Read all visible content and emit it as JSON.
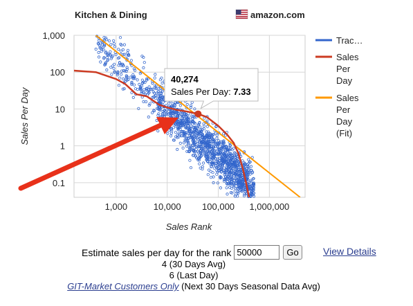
{
  "header": {
    "category": "Kitchen & Dining",
    "marketplace": "amazon.com",
    "flag_icon": "us-flag-icon"
  },
  "chart_data": {
    "type": "scatter",
    "xlabel": "Sales Rank",
    "ylabel": "Sales Per Day",
    "x_scale": "log",
    "y_scale": "log",
    "xlim": [
      150,
      5000000
    ],
    "ylim": [
      0.04,
      1000
    ],
    "x_ticks": [
      "1,000",
      "10,000",
      "100,000",
      "1,000,000"
    ],
    "x_tick_values": [
      1000,
      10000,
      100000,
      1000000
    ],
    "y_ticks": [
      "1,000",
      "100",
      "10",
      "1",
      "0.1"
    ],
    "y_tick_values": [
      1000,
      100,
      10,
      1,
      0.1
    ],
    "grid": true,
    "legend_position": "right",
    "series": [
      {
        "name": "Trac…",
        "kind": "points",
        "color": "#3366cc"
      },
      {
        "name": "Sales Per Day",
        "kind": "line",
        "color": "#cc3b22",
        "x": [
          150,
          400,
          1000,
          1500,
          2500,
          4000,
          7000,
          10000,
          15000,
          25000,
          40274,
          60000,
          100000,
          150000,
          200000,
          250000,
          300000,
          350000,
          400000
        ],
        "y": [
          110,
          100,
          65,
          48,
          25,
          22,
          13,
          11,
          9.5,
          8.5,
          7.33,
          6,
          3.5,
          2,
          1.2,
          0.6,
          0.25,
          0.1,
          0.04
        ]
      },
      {
        "name": "Sales Per Day (Fit)",
        "kind": "line",
        "color": "#ff9900",
        "x": [
          400,
          4000000
        ],
        "y": [
          1000,
          0.04
        ]
      }
    ],
    "tooltip": {
      "rank": "40,274",
      "label": "Sales Per Day:",
      "value": "7.33",
      "x": 40274,
      "y": 7.33
    }
  },
  "form": {
    "estimate_label": "Estimate sales per day for the rank",
    "rank_value": "50000",
    "go_label": "Go",
    "view_details": "View Details"
  },
  "results": {
    "avg30": "4 (30 Days Avg)",
    "last_day": "6 (Last Day)",
    "git_link": "GIT-Market Customers Only",
    "seasonal_note": "(Next 30 Days Seasonal Data Avg)"
  }
}
